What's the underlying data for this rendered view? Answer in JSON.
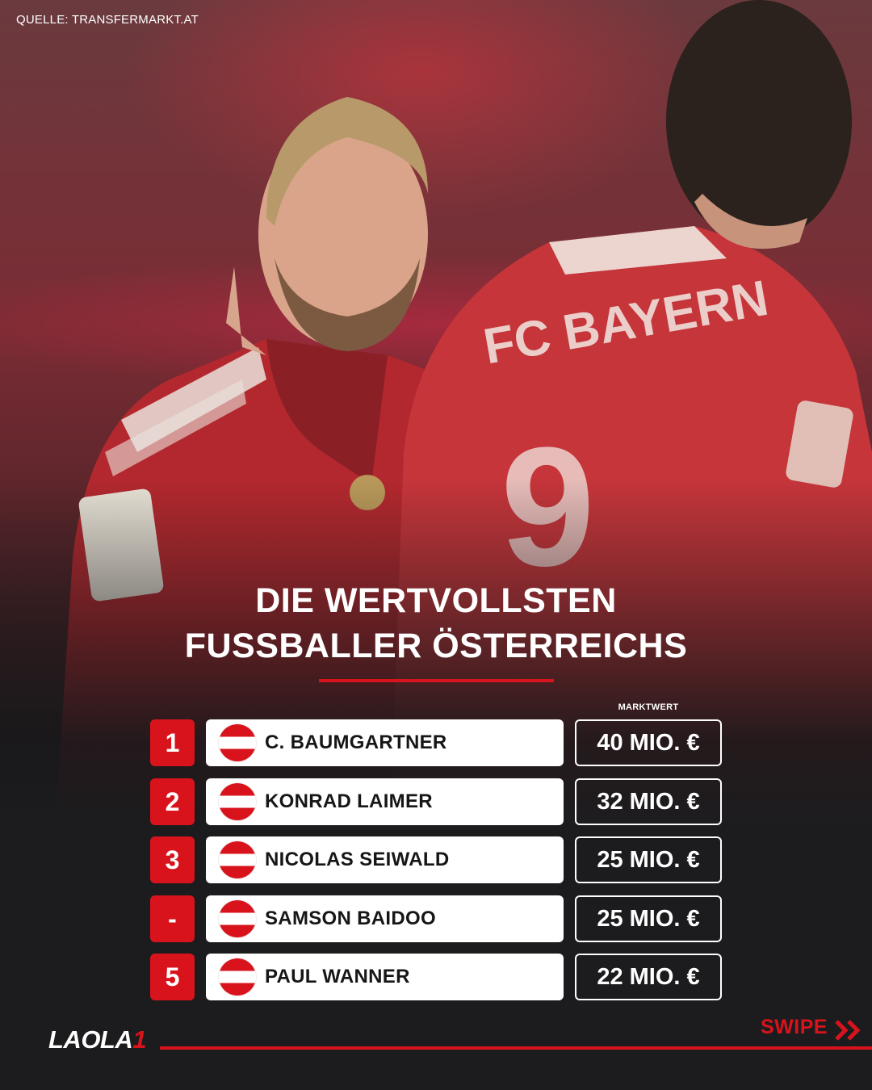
{
  "source": "QUELLE: TRANSFERMARKT.AT",
  "title_lines": [
    "DIE WERTVOLLSTEN",
    "FUSSBALLER ÖSTERREICHS"
  ],
  "column_header": "MARKTWERT",
  "rows": [
    {
      "rank": "1",
      "name": "C. BAUMGARTNER",
      "value": "40 MIO. €",
      "flag": "austria-flag"
    },
    {
      "rank": "2",
      "name": "KONRAD LAIMER",
      "value": "32 MIO. €",
      "flag": "austria-flag"
    },
    {
      "rank": "3",
      "name": "NICOLAS SEIWALD",
      "value": "25 MIO. €",
      "flag": "austria-flag"
    },
    {
      "rank": "-",
      "name": "SAMSON BAIDOO",
      "value": "25 MIO. €",
      "flag": "austria-flag"
    },
    {
      "rank": "5",
      "name": "PAUL WANNER",
      "value": "22 MIO. €",
      "flag": "austria-flag"
    }
  ],
  "logo": {
    "text": "LAOLA",
    "mark": "1"
  },
  "swipe": {
    "label": "SWIPE",
    "icon": "double-chevron-right-icon"
  },
  "colors": {
    "accent": "#d9131c",
    "background": "#1c1c1e",
    "flag_red": "#d9131c",
    "flag_white": "#ffffff"
  },
  "background_image": "photo of two football players in red FC Bayern jerseys"
}
